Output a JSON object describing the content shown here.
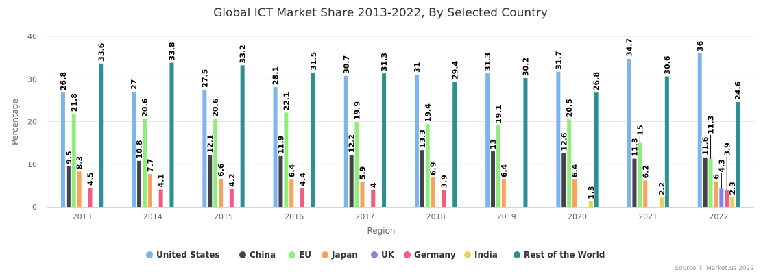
{
  "chart_data": {
    "type": "bar",
    "title": "Global ICT Market Share 2013-2022, By Selected Country",
    "xlabel": "Region",
    "ylabel": "Percentage",
    "ylim": [
      0,
      40
    ],
    "yticks": [
      0,
      10,
      20,
      30,
      40
    ],
    "grid": true,
    "legend_position": "bottom",
    "categories": [
      "2013",
      "2014",
      "2015",
      "2016",
      "2017",
      "2018",
      "2019",
      "2020",
      "2021",
      "2022"
    ],
    "series": [
      {
        "name": "United States",
        "color": "#7cb5ec",
        "values": [
          26.8,
          27,
          27.5,
          28.1,
          30.7,
          31,
          31.3,
          31.7,
          34.7,
          36
        ]
      },
      {
        "name": "China",
        "color": "#434348",
        "values": [
          9.5,
          10.8,
          12.1,
          11.9,
          12.2,
          13.3,
          13,
          12.6,
          11.3,
          11.6
        ]
      },
      {
        "name": "EU",
        "color": "#90ed7d",
        "values": [
          21.8,
          20.6,
          20.6,
          22.1,
          19.9,
          19.4,
          19.1,
          20.5,
          15,
          11.3
        ]
      },
      {
        "name": "Japan",
        "color": "#f7a35c",
        "values": [
          8.3,
          7.7,
          6.6,
          6.4,
          5.9,
          6.9,
          6.4,
          6.4,
          6.2,
          6
        ]
      },
      {
        "name": "UK",
        "color": "#8085e9",
        "values": [
          null,
          null,
          null,
          null,
          null,
          null,
          null,
          null,
          null,
          4.3
        ]
      },
      {
        "name": "Germany",
        "color": "#f15c80",
        "values": [
          4.5,
          4.1,
          4.2,
          4.4,
          4,
          3.9,
          null,
          null,
          null,
          3.9
        ]
      },
      {
        "name": "India",
        "color": "#e4d354",
        "values": [
          null,
          null,
          null,
          null,
          null,
          null,
          null,
          1.3,
          2.2,
          2.3
        ]
      },
      {
        "name": "Rest of the World",
        "color": "#2b908f",
        "values": [
          33.6,
          33.8,
          33.2,
          31.5,
          31.3,
          29.4,
          30.2,
          26.8,
          30.6,
          24.6
        ]
      }
    ],
    "credit": "Source © Market.us 2022"
  }
}
